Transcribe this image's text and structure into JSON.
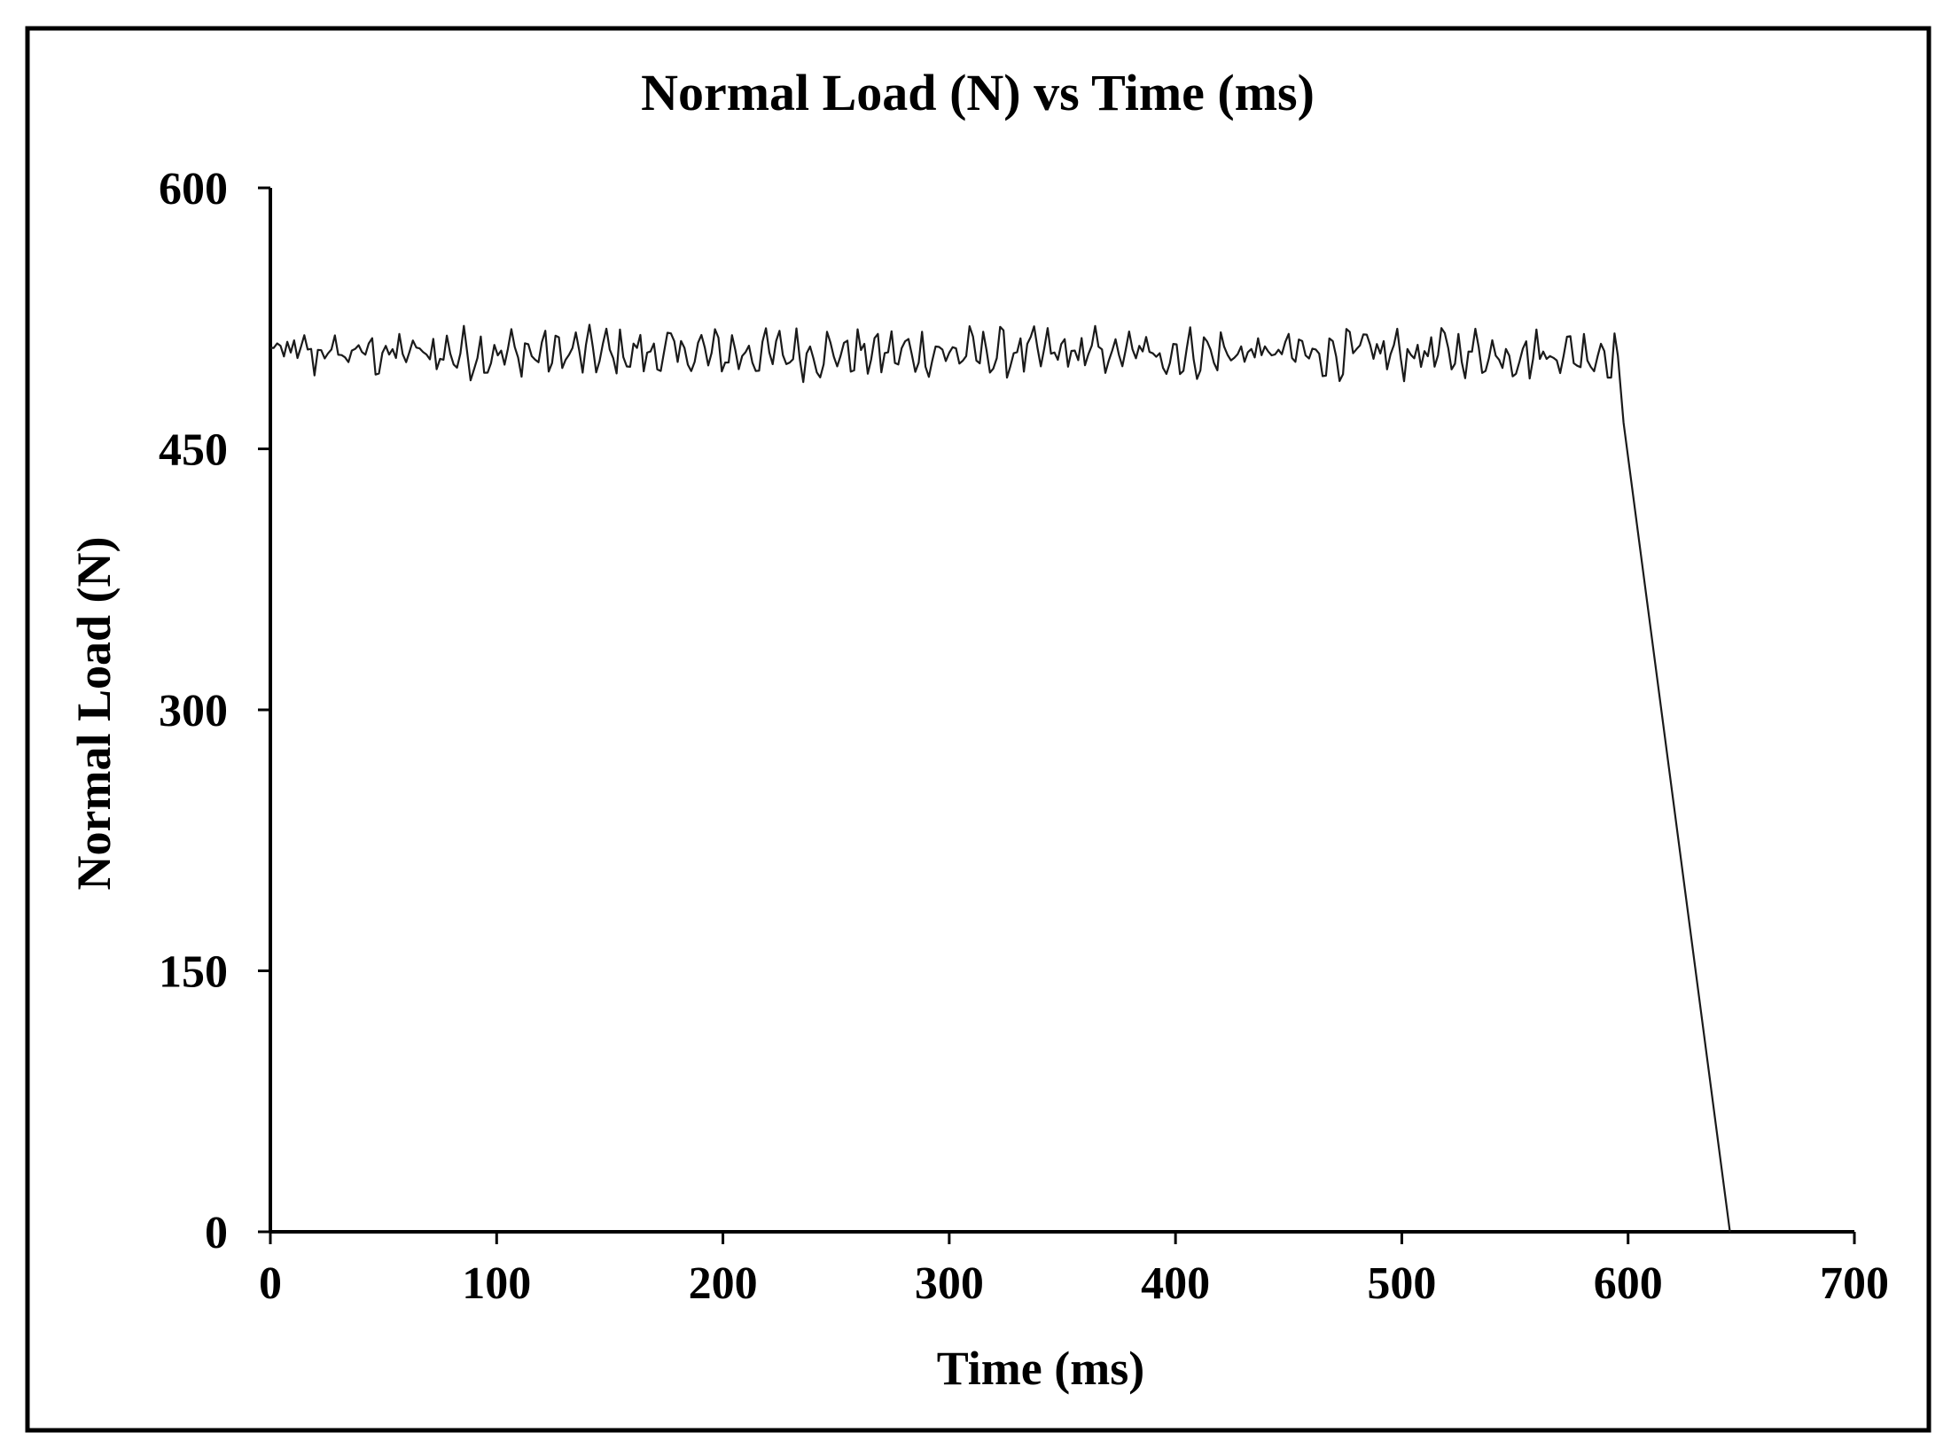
{
  "colors": {
    "background": "#ffffff",
    "frame": "#000000",
    "axis": "#000000",
    "series_line": "#1a1a1a",
    "text": "#000000"
  },
  "chart_data": {
    "type": "line",
    "title": "Normal Load (N) vs Time (ms)",
    "xlabel": "Time (ms)",
    "ylabel": "Normal Load (N)",
    "xlim": [
      0,
      700
    ],
    "ylim": [
      0,
      600
    ],
    "x_ticks": [
      0,
      100,
      200,
      300,
      400,
      500,
      600,
      700
    ],
    "y_ticks": [
      0,
      150,
      300,
      450,
      600
    ],
    "x_tick_labels": [
      "0",
      "100",
      "200",
      "300",
      "400",
      "500",
      "600",
      "700"
    ],
    "y_tick_labels": [
      "0",
      "150",
      "300",
      "450",
      "600"
    ],
    "grid": false,
    "legend": "none",
    "series": [
      {
        "x": [
          0,
          596,
          598,
          645
        ],
        "y": [
          505,
          505,
          465,
          0
        ],
        "noise": {
          "x_range": [
            0,
            596
          ],
          "amplitude": 14,
          "description_of_trace": "oscillates between about 490 and 520"
        }
      }
    ]
  }
}
